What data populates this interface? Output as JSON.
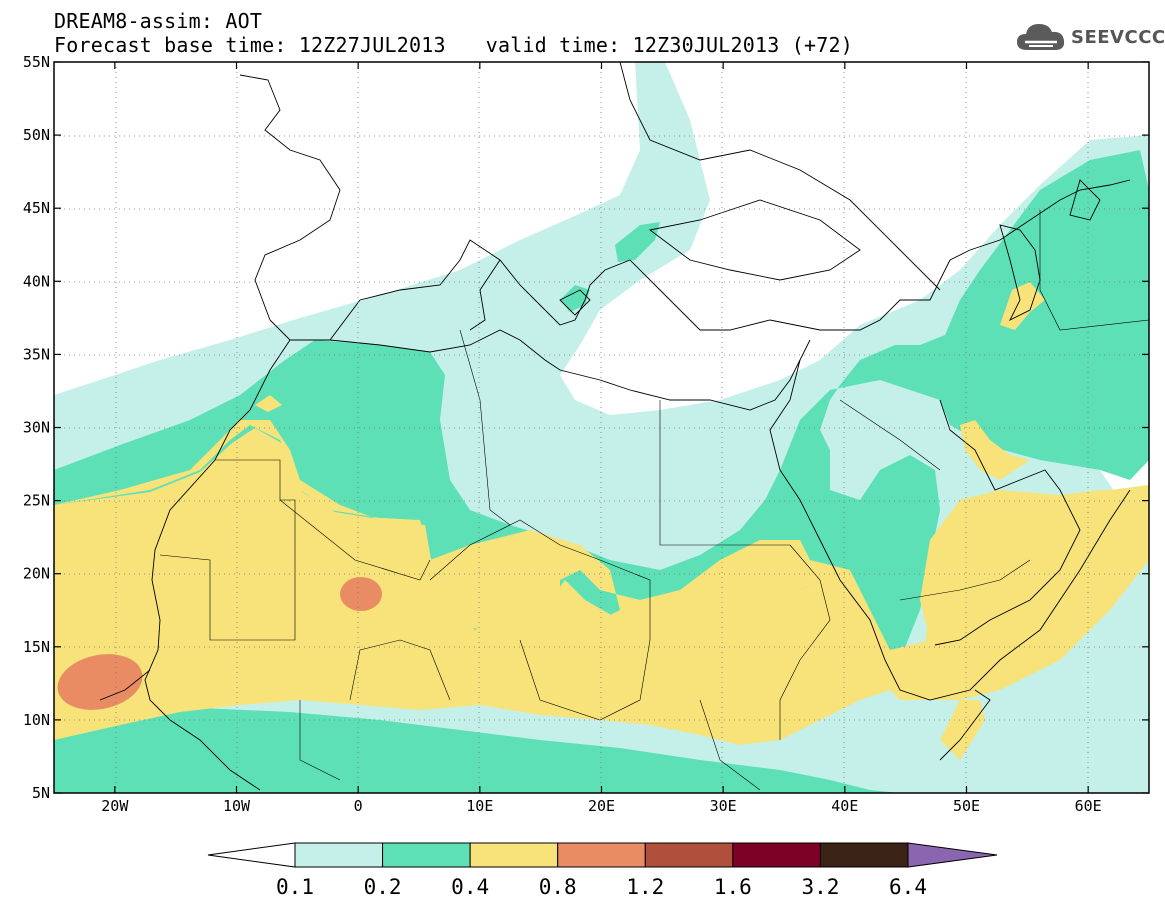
{
  "title": {
    "line1": "DREAM8-assim: AOT",
    "base_time": "Forecast base time: 12Z27JUL2013",
    "valid_time": "valid time: 12Z30JUL2013 (+72)"
  },
  "logo": {
    "icon": "cloud-icon",
    "text": "SEEVCCC"
  },
  "map": {
    "lon_range": [
      -25,
      65
    ],
    "lat_range": [
      5,
      55
    ],
    "lat_ticks": [
      {
        "value": 55,
        "label": "55N"
      },
      {
        "value": 50,
        "label": "50N"
      },
      {
        "value": 45,
        "label": "45N"
      },
      {
        "value": 40,
        "label": "40N"
      },
      {
        "value": 35,
        "label": "35N"
      },
      {
        "value": 30,
        "label": "30N"
      },
      {
        "value": 25,
        "label": "25N"
      },
      {
        "value": 20,
        "label": "20N"
      },
      {
        "value": 15,
        "label": "15N"
      },
      {
        "value": 10,
        "label": "10N"
      },
      {
        "value": 5,
        "label": "5N"
      }
    ],
    "lon_ticks": [
      {
        "value": -20,
        "label": "20W"
      },
      {
        "value": -10,
        "label": "10W"
      },
      {
        "value": 0,
        "label": "0"
      },
      {
        "value": 10,
        "label": "10E"
      },
      {
        "value": 20,
        "label": "20E"
      },
      {
        "value": 30,
        "label": "30E"
      },
      {
        "value": 40,
        "label": "40E"
      },
      {
        "value": 50,
        "label": "50E"
      },
      {
        "value": 60,
        "label": "60E"
      }
    ],
    "grid": "dotted"
  },
  "legend": {
    "colors": [
      "#ffffff",
      "#c4f0e9",
      "#5ee0b7",
      "#f7e37a",
      "#ea8c63",
      "#b04f3c",
      "#7d0026",
      "#3b2216",
      "#8b66b0"
    ],
    "labels": [
      "0.1",
      "0.2",
      "0.4",
      "0.8",
      "1.2",
      "1.6",
      "3.2",
      "6.4"
    ]
  }
}
